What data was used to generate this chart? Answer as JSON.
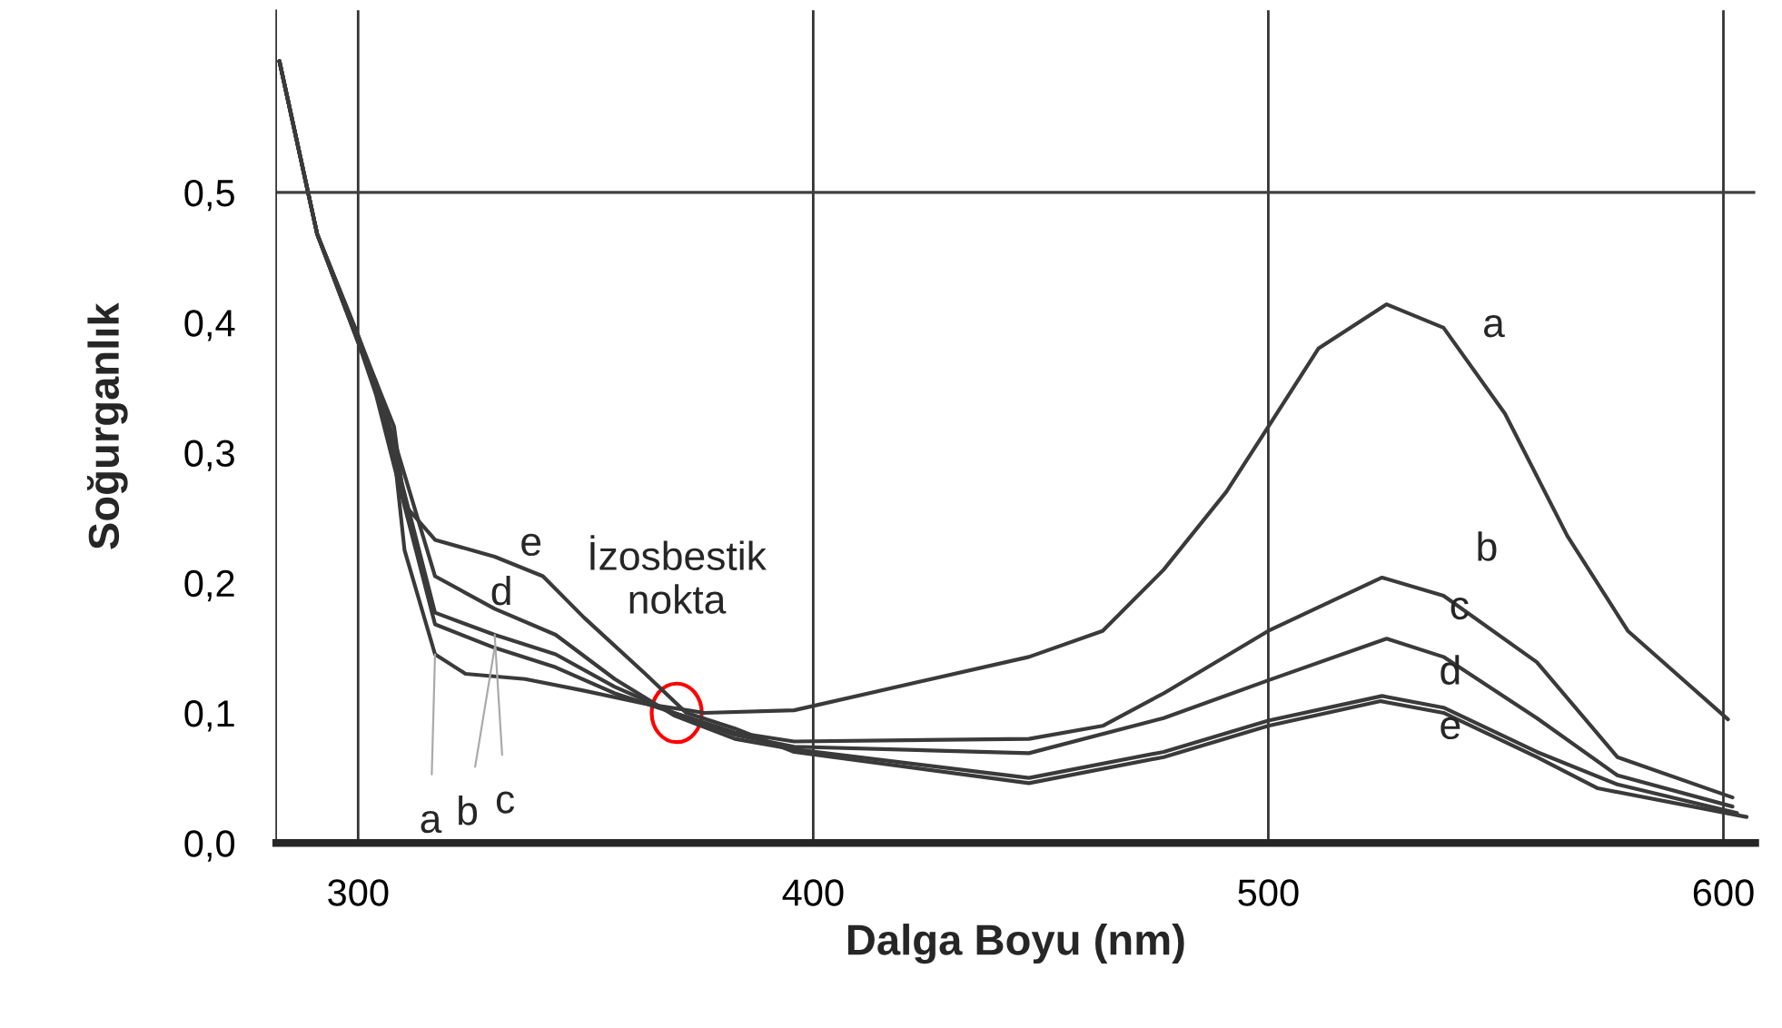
{
  "chart_data": {
    "type": "line",
    "xlabel": "Dalga Boyu (nm)",
    "ylabel": "Soğurganlık",
    "xlim": [
      282,
      607
    ],
    "ylim": [
      0,
      0.64
    ],
    "xticks": [
      300,
      400,
      500,
      600
    ],
    "yticks": [
      {
        "value": 0,
        "label": "0,0"
      },
      {
        "value": 0.1,
        "label": "0,1"
      },
      {
        "value": 0.2,
        "label": "0,2"
      },
      {
        "value": 0.3,
        "label": "0,3"
      },
      {
        "value": 0.4,
        "label": "0,4"
      },
      {
        "value": 0.5,
        "label": "0,5"
      }
    ],
    "grid": "x",
    "marker": "none",
    "line_style": "solid",
    "ref_lines": [
      {
        "axis": "y",
        "value": 0.5,
        "color": "#404040"
      }
    ],
    "series": [
      {
        "color": "#3a3a3a",
        "x": [
          282.7,
          291,
          300,
          303.9,
          307.9,
          310.2,
          316.9,
          323.6,
          336.7,
          349.7,
          363.1,
          376.1,
          395.8,
          447.4,
          463.6,
          477,
          490.8,
          500,
          511,
          526,
          538.5,
          552,
          565.7,
          579,
          601
        ],
        "values": [
          0.601,
          0.468,
          0.39,
          0.35,
          0.3,
          0.225,
          0.145,
          0.13,
          0.126,
          0.117,
          0.107,
          0.1,
          0.102,
          0.143,
          0.163,
          0.21,
          0.27,
          0.32,
          0.38,
          0.414,
          0.396,
          0.33,
          0.236,
          0.163,
          0.095
        ]
      },
      {
        "color": "#3a3a3a",
        "x": [
          282.7,
          291,
          300,
          303.9,
          307.9,
          316.9,
          330,
          343.4,
          356.4,
          369.4,
          382.8,
          395.8,
          447.4,
          463.6,
          477,
          500,
          525,
          538.5,
          559,
          576.7,
          602
        ],
        "values": [
          0.601,
          0.468,
          0.385,
          0.345,
          0.29,
          0.168,
          0.15,
          0.135,
          0.115,
          0.1,
          0.085,
          0.078,
          0.08,
          0.09,
          0.115,
          0.163,
          0.204,
          0.19,
          0.139,
          0.066,
          0.035
        ]
      },
      {
        "color": "#3a3a3a",
        "x": [
          282.7,
          291,
          300,
          303.9,
          307.9,
          316.9,
          330,
          343.4,
          356.4,
          369.4,
          382.8,
          395.8,
          447.4,
          477,
          500,
          526,
          538.5,
          559,
          576.7,
          602
        ],
        "values": [
          0.601,
          0.468,
          0.385,
          0.35,
          0.3,
          0.177,
          0.16,
          0.145,
          0.12,
          0.1,
          0.083,
          0.074,
          0.069,
          0.096,
          0.125,
          0.157,
          0.143,
          0.096,
          0.052,
          0.028
        ]
      },
      {
        "color": "#3a3a3a",
        "x": [
          282.7,
          291,
          300,
          303.9,
          307.9,
          316.9,
          330,
          343.4,
          356.4,
          369.4,
          382.8,
          395.8,
          447.4,
          477,
          500,
          525,
          538.5,
          559,
          576.7,
          603
        ],
        "values": [
          0.601,
          0.468,
          0.385,
          0.355,
          0.31,
          0.205,
          0.18,
          0.16,
          0.126,
          0.098,
          0.08,
          0.072,
          0.05,
          0.07,
          0.094,
          0.113,
          0.104,
          0.07,
          0.045,
          0.023
        ]
      },
      {
        "color": "#3a3a3a",
        "x": [
          282.7,
          291,
          300,
          303.9,
          307.9,
          310.2,
          316.9,
          330,
          340.6,
          349.7,
          363.1,
          372.1,
          382.8,
          395.8,
          447.4,
          477,
          500,
          524.7,
          538.5,
          559,
          572.4,
          605.1
        ],
        "values": [
          0.601,
          0.468,
          0.39,
          0.355,
          0.32,
          0.26,
          0.233,
          0.22,
          0.205,
          0.173,
          0.13,
          0.1,
          0.088,
          0.07,
          0.046,
          0.066,
          0.09,
          0.109,
          0.1,
          0.066,
          0.042,
          0.02
        ]
      }
    ],
    "annotations": [
      {
        "text": "a",
        "x": 538.5,
        "y": 0.396
      },
      {
        "text": "b",
        "x": 538.5,
        "y": 0.19
      },
      {
        "text": "c",
        "x": 538.5,
        "y": 0.143
      },
      {
        "text": "d",
        "x": 538.5,
        "y": 0.104
      },
      {
        "text": "e",
        "x": 538.5,
        "y": 0.1
      },
      {
        "text": "e",
        "x": 330,
        "y": 0.22
      },
      {
        "text": "d",
        "x": 330,
        "y": 0.18
      },
      {
        "text": "a",
        "x": 316.9,
        "y": 0.145
      },
      {
        "text": "b",
        "x": 330,
        "y": 0.15
      },
      {
        "text": "c",
        "x": 330,
        "y": 0.16
      },
      {
        "text": "İzosbestik\nnokta",
        "x": 370,
        "y": 0.1
      }
    ]
  }
}
